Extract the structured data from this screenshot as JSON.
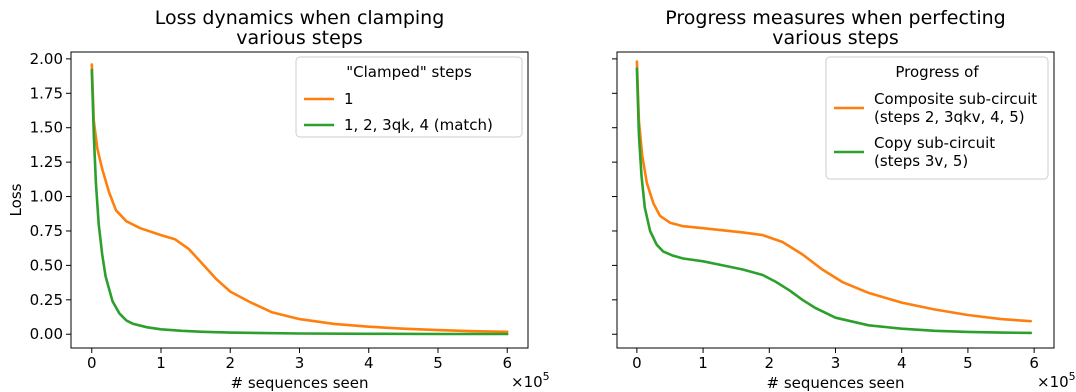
{
  "chart_data": [
    {
      "type": "line",
      "title": [
        "Loss dynamics when clamping",
        "various steps"
      ],
      "xlabel": "# sequences seen",
      "ylabel": "Loss",
      "x_multiplier": "×10",
      "x_multiplier_exp": "5",
      "xlim": [
        -0.3,
        6.3
      ],
      "ylim": [
        -0.1,
        2.05
      ],
      "xticks": [
        0,
        1,
        2,
        3,
        4,
        5,
        6
      ],
      "yticks": [
        0.0,
        0.25,
        0.5,
        0.75,
        1.0,
        1.25,
        1.5,
        1.75,
        2.0
      ],
      "ytick_labels": [
        "0.00",
        "0.25",
        "0.50",
        "0.75",
        "1.00",
        "1.25",
        "1.50",
        "1.75",
        "2.00"
      ],
      "legend": {
        "title": "\"Clamped\" steps",
        "placement": "top-right"
      },
      "series": [
        {
          "name": "1",
          "color": "#ff7f0e",
          "x": [
            0,
            0.03,
            0.08,
            0.15,
            0.25,
            0.35,
            0.5,
            0.7,
            1.0,
            1.2,
            1.4,
            1.6,
            1.8,
            2.0,
            2.3,
            2.6,
            3.0,
            3.5,
            4.0,
            4.5,
            5.0,
            5.5,
            6.0
          ],
          "y": [
            1.96,
            1.55,
            1.35,
            1.2,
            1.03,
            0.9,
            0.82,
            0.77,
            0.72,
            0.69,
            0.62,
            0.51,
            0.4,
            0.31,
            0.23,
            0.16,
            0.11,
            0.075,
            0.055,
            0.04,
            0.03,
            0.022,
            0.018
          ]
        },
        {
          "name": "1, 2, 3qk, 4 (match)",
          "color": "#2ca02c",
          "x": [
            0,
            0.03,
            0.06,
            0.1,
            0.15,
            0.2,
            0.3,
            0.4,
            0.5,
            0.6,
            0.8,
            1.0,
            1.3,
            1.6,
            2.0,
            2.5,
            3.0,
            4.0,
            5.0,
            6.0
          ],
          "y": [
            1.92,
            1.45,
            1.1,
            0.8,
            0.58,
            0.42,
            0.24,
            0.15,
            0.1,
            0.075,
            0.05,
            0.036,
            0.025,
            0.018,
            0.012,
            0.008,
            0.005,
            0.003,
            0.002,
            0.002
          ]
        }
      ]
    },
    {
      "type": "line",
      "title": [
        "Progress measures when perfecting",
        "various steps"
      ],
      "xlabel": "# sequences seen",
      "ylabel": "",
      "x_multiplier": "×10",
      "x_multiplier_exp": "5",
      "xlim": [
        -0.3,
        6.3
      ],
      "ylim": [
        -0.1,
        2.05
      ],
      "xticks": [
        0,
        1,
        2,
        3,
        4,
        5,
        6
      ],
      "yticks": [
        0.0,
        0.25,
        0.5,
        0.75,
        1.0,
        1.25,
        1.5,
        1.75,
        2.0
      ],
      "ytick_labels": [],
      "legend": {
        "title": "Progress of",
        "placement": "top-right"
      },
      "series": [
        {
          "name": "Composite sub-circuit\n(steps 2, 3qkv, 4, 5)",
          "color": "#ff7f0e",
          "x": [
            0,
            0.03,
            0.08,
            0.15,
            0.25,
            0.35,
            0.5,
            0.7,
            1.0,
            1.3,
            1.6,
            1.9,
            2.2,
            2.5,
            2.8,
            3.1,
            3.5,
            4.0,
            4.5,
            5.0,
            5.5,
            5.95
          ],
          "y": [
            1.98,
            1.55,
            1.3,
            1.1,
            0.95,
            0.86,
            0.81,
            0.785,
            0.77,
            0.755,
            0.74,
            0.72,
            0.67,
            0.58,
            0.47,
            0.38,
            0.3,
            0.23,
            0.18,
            0.14,
            0.11,
            0.095
          ]
        },
        {
          "name": "Copy sub-circuit\n(steps 3v, 5)",
          "color": "#2ca02c",
          "x": [
            0,
            0.03,
            0.07,
            0.12,
            0.2,
            0.3,
            0.4,
            0.55,
            0.7,
            1.0,
            1.3,
            1.6,
            1.9,
            2.1,
            2.3,
            2.5,
            2.7,
            3.0,
            3.5,
            4.0,
            4.5,
            5.0,
            5.5,
            5.95
          ],
          "y": [
            1.93,
            1.45,
            1.15,
            0.92,
            0.75,
            0.65,
            0.6,
            0.57,
            0.55,
            0.53,
            0.5,
            0.47,
            0.43,
            0.38,
            0.32,
            0.25,
            0.19,
            0.12,
            0.065,
            0.04,
            0.025,
            0.017,
            0.012,
            0.01
          ]
        }
      ]
    }
  ]
}
